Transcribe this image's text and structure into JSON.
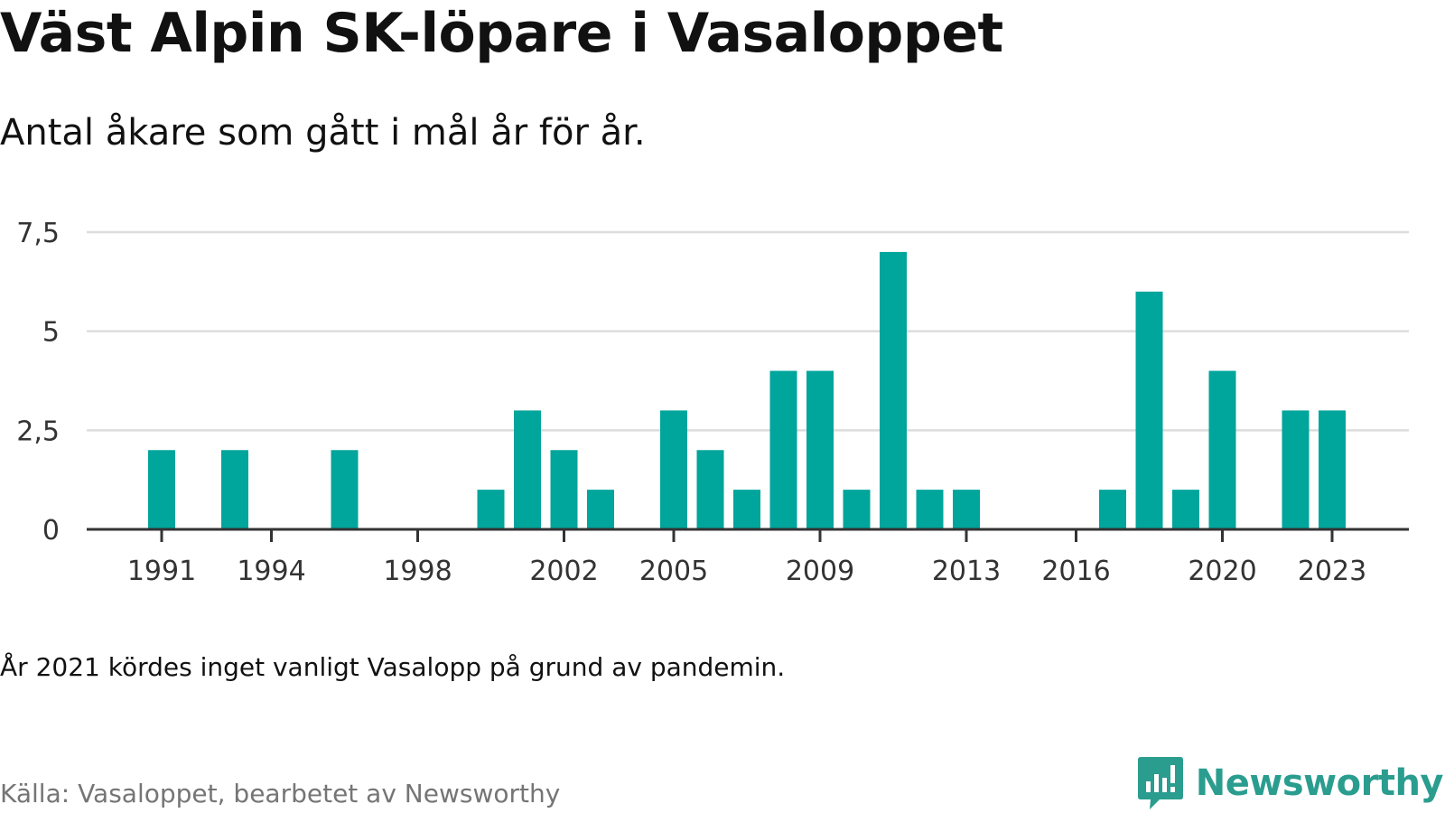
{
  "header": {
    "title": "Väst Alpin SK-löpare i Vasaloppet",
    "subtitle": "Antal åkare som gått i mål år för år."
  },
  "footer": {
    "note": "År 2021 kördes inget vanligt Vasalopp på grund av pandemin.",
    "source": "Källa: Vasaloppet, bearbetet av Newsworthy",
    "brand": "Newsworthy",
    "brand_icon": "chart-bubble-icon"
  },
  "colors": {
    "bar": "#00a59b",
    "grid": "#dddddd",
    "axis": "#333333",
    "brand": "#2a9d8f"
  },
  "chart_data": {
    "type": "bar",
    "title": "Väst Alpin SK-löpare i Vasaloppet",
    "subtitle": "Antal åkare som gått i mål år för år.",
    "xlabel": "",
    "ylabel": "",
    "ylim": [
      0,
      7.5
    ],
    "y_ticks": [
      0,
      2.5,
      5,
      7.5
    ],
    "y_tick_labels": [
      "0",
      "2,5",
      "5",
      "7,5"
    ],
    "x_tick_labels": [
      1991,
      1994,
      1998,
      2002,
      2005,
      2009,
      2013,
      2016,
      2020,
      2023
    ],
    "grid": true,
    "legend": "none",
    "categories": [
      1991,
      1992,
      1993,
      1994,
      1995,
      1996,
      1997,
      1998,
      1999,
      2000,
      2001,
      2002,
      2003,
      2004,
      2005,
      2006,
      2007,
      2008,
      2009,
      2010,
      2011,
      2012,
      2013,
      2014,
      2015,
      2016,
      2017,
      2018,
      2019,
      2020,
      2021,
      2022,
      2023
    ],
    "values": [
      2,
      0,
      2,
      0,
      0,
      2,
      0,
      0,
      0,
      1,
      3,
      2,
      1,
      0,
      3,
      2,
      1,
      4,
      4,
      1,
      7,
      1,
      1,
      0,
      0,
      0,
      1,
      6,
      1,
      4,
      0,
      3,
      3
    ]
  }
}
